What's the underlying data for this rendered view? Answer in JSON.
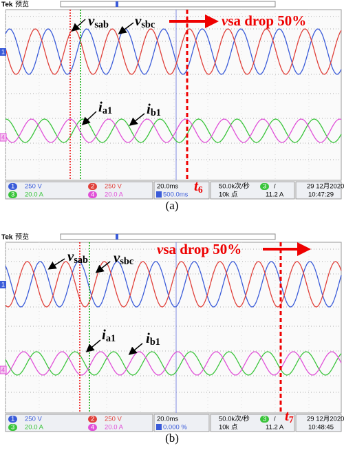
{
  "panels": [
    {
      "caption": "(a)",
      "brand": "Tek",
      "mode": "预览",
      "voltage_labels": [
        {
          "symbol": "v",
          "subscript": "sab"
        },
        {
          "symbol": "v",
          "subscript": "sbc"
        }
      ],
      "current_labels": [
        {
          "symbol": "i",
          "subscript": "a1"
        },
        {
          "symbol": "i",
          "subscript": "b1"
        }
      ],
      "annotation": {
        "symbol": "v",
        "text": "sa drop 50%"
      },
      "time_marker": {
        "symbol": "t",
        "subscript": "6"
      },
      "channel_markers": [
        "1",
        "4"
      ],
      "channels": [
        {
          "number": "1",
          "scale": "250 V"
        },
        {
          "number": "2",
          "scale": "250 V"
        },
        {
          "number": "3",
          "scale": "20.0 A"
        },
        {
          "number": "4",
          "scale": "20.0 A"
        }
      ],
      "timebase": "20.0ms",
      "trigger_position": "500.0ms",
      "sample_rate": "50.0k次/秒",
      "record_length": "10k 点",
      "trigger_channel": "3",
      "trigger_slope": "/",
      "trigger_level": "11.2 A",
      "date": "29 12月2020",
      "time": "10:47:29"
    },
    {
      "caption": "(b)",
      "brand": "Tek",
      "mode": "预览",
      "voltage_labels": [
        {
          "symbol": "v",
          "subscript": "sab"
        },
        {
          "symbol": "v",
          "subscript": "sbc"
        }
      ],
      "current_labels": [
        {
          "symbol": "i",
          "subscript": "a1"
        },
        {
          "symbol": "i",
          "subscript": "b1"
        }
      ],
      "annotation": {
        "symbol": "v",
        "text": "sa drop 50%"
      },
      "time_marker": {
        "symbol": "t",
        "subscript": "7"
      },
      "channel_markers": [
        "1",
        "4"
      ],
      "channels": [
        {
          "number": "1",
          "scale": "250 V"
        },
        {
          "number": "2",
          "scale": "250 V"
        },
        {
          "number": "3",
          "scale": "20.0 A"
        },
        {
          "number": "4",
          "scale": "20.0 A"
        }
      ],
      "timebase": "20.0ms",
      "trigger_position": "0.000 %",
      "sample_rate": "50.0k次/秒",
      "record_length": "10k 点",
      "trigger_channel": "3",
      "trigger_slope": "/",
      "trigger_level": "11.2 A",
      "date": "29 12月2020",
      "time": "10:48:45"
    }
  ]
}
